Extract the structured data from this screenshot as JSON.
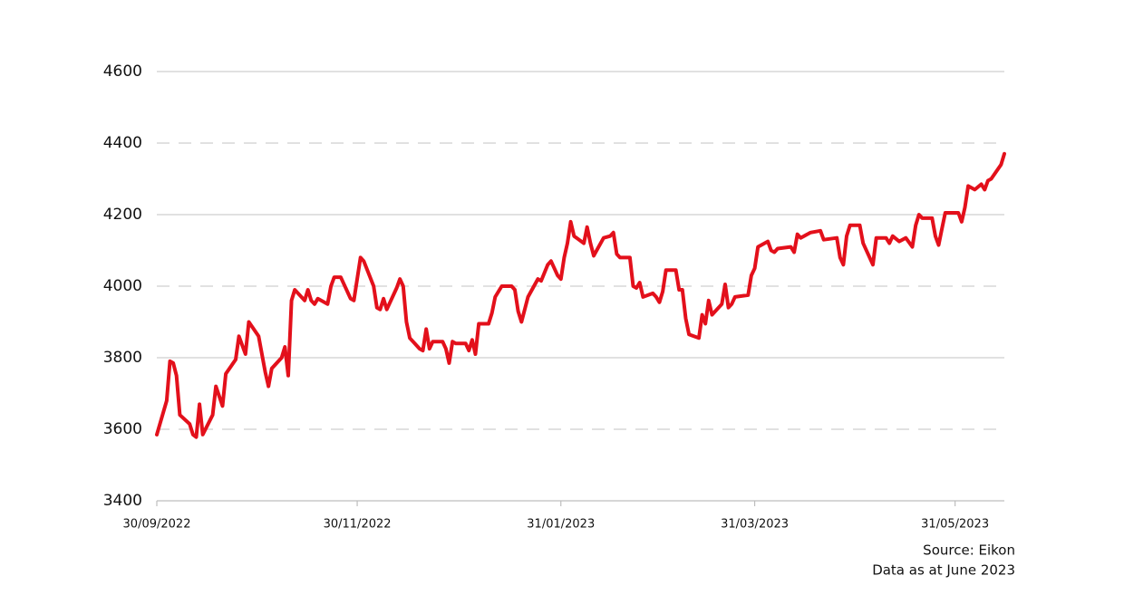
{
  "chart_data": {
    "type": "line",
    "x": [
      "2022-09-30",
      "2022-10-03",
      "2022-10-04",
      "2022-10-05",
      "2022-10-06",
      "2022-10-07",
      "2022-10-10",
      "2022-10-11",
      "2022-10-12",
      "2022-10-13",
      "2022-10-14",
      "2022-10-17",
      "2022-10-18",
      "2022-10-20",
      "2022-10-21",
      "2022-10-24",
      "2022-10-25",
      "2022-10-27",
      "2022-10-28",
      "2022-10-31",
      "2022-11-02",
      "2022-11-03",
      "2022-11-04",
      "2022-11-07",
      "2022-11-08",
      "2022-11-09",
      "2022-11-10",
      "2022-11-11",
      "2022-11-14",
      "2022-11-15",
      "2022-11-16",
      "2022-11-17",
      "2022-11-18",
      "2022-11-21",
      "2022-11-22",
      "2022-11-23",
      "2022-11-25",
      "2022-11-28",
      "2022-11-29",
      "2022-12-01",
      "2022-12-02",
      "2022-12-05",
      "2022-12-06",
      "2022-12-07",
      "2022-12-08",
      "2022-12-09",
      "2022-12-12",
      "2022-12-13",
      "2022-12-14",
      "2022-12-15",
      "2022-12-16",
      "2022-12-19",
      "2022-12-20",
      "2022-12-21",
      "2022-12-22",
      "2022-12-23",
      "2022-12-26",
      "2022-12-27",
      "2022-12-28",
      "2022-12-29",
      "2022-12-30",
      "2023-01-02",
      "2023-01-03",
      "2023-01-04",
      "2023-01-05",
      "2023-01-06",
      "2023-01-09",
      "2023-01-10",
      "2023-01-11",
      "2023-01-13",
      "2023-01-16",
      "2023-01-17",
      "2023-01-18",
      "2023-01-19",
      "2023-01-21",
      "2023-01-24",
      "2023-01-25",
      "2023-01-27",
      "2023-01-28",
      "2023-01-30",
      "2023-01-31",
      "2023-02-01",
      "2023-02-02",
      "2023-02-03",
      "2023-02-04",
      "2023-02-07",
      "2023-02-08",
      "2023-02-09",
      "2023-02-10",
      "2023-02-13",
      "2023-02-15",
      "2023-02-16",
      "2023-02-17",
      "2023-02-18",
      "2023-02-21",
      "2023-02-22",
      "2023-02-23",
      "2023-02-24",
      "2023-02-25",
      "2023-02-28",
      "2023-03-01",
      "2023-03-02",
      "2023-03-03",
      "2023-03-04",
      "2023-03-07",
      "2023-03-08",
      "2023-03-09",
      "2023-03-10",
      "2023-03-11",
      "2023-03-14",
      "2023-03-15",
      "2023-03-16",
      "2023-03-17",
      "2023-03-18",
      "2023-03-21",
      "2023-03-22",
      "2023-03-23",
      "2023-03-24",
      "2023-03-25",
      "2023-03-29",
      "2023-03-30",
      "2023-03-31",
      "2023-04-01",
      "2023-04-04",
      "2023-04-05",
      "2023-04-06",
      "2023-04-07",
      "2023-04-11",
      "2023-04-12",
      "2023-04-13",
      "2023-04-14",
      "2023-04-17",
      "2023-04-20",
      "2023-04-21",
      "2023-04-25",
      "2023-04-26",
      "2023-04-27",
      "2023-04-28",
      "2023-04-29",
      "2023-05-02",
      "2023-05-03",
      "2023-05-06",
      "2023-05-07",
      "2023-05-10",
      "2023-05-11",
      "2023-05-12",
      "2023-05-14",
      "2023-05-16",
      "2023-05-18",
      "2023-05-19",
      "2023-05-20",
      "2023-05-21",
      "2023-05-24",
      "2023-05-25",
      "2023-05-26",
      "2023-05-27",
      "2023-05-28",
      "2023-06-01",
      "2023-06-02",
      "2023-06-03",
      "2023-06-04",
      "2023-06-06",
      "2023-06-08",
      "2023-06-09",
      "2023-06-10",
      "2023-06-11",
      "2023-06-14",
      "2023-06-15"
    ],
    "values": [
      3585,
      3680,
      3790,
      3785,
      3750,
      3640,
      3615,
      3585,
      3578,
      3670,
      3585,
      3640,
      3720,
      3665,
      3755,
      3795,
      3860,
      3810,
      3900,
      3860,
      3760,
      3720,
      3770,
      3800,
      3830,
      3750,
      3960,
      3990,
      3960,
      3990,
      3960,
      3950,
      3965,
      3950,
      4000,
      4025,
      4025,
      3965,
      3960,
      4080,
      4070,
      4000,
      3940,
      3935,
      3965,
      3935,
      3995,
      4020,
      4000,
      3900,
      3855,
      3825,
      3820,
      3880,
      3825,
      3845,
      3845,
      3825,
      3785,
      3845,
      3840,
      3840,
      3820,
      3850,
      3810,
      3895,
      3895,
      3925,
      3970,
      4000,
      4000,
      3990,
      3930,
      3900,
      3970,
      4020,
      4015,
      4060,
      4070,
      4030,
      4020,
      4080,
      4120,
      4180,
      4140,
      4120,
      4165,
      4120,
      4085,
      4135,
      4140,
      4150,
      4090,
      4080,
      4080,
      4000,
      3995,
      4010,
      3970,
      3980,
      3970,
      3955,
      3985,
      4045,
      4045,
      3990,
      3990,
      3910,
      3865,
      3855,
      3920,
      3895,
      3960,
      3920,
      3950,
      4005,
      3940,
      3950,
      3970,
      3975,
      4030,
      4050,
      4110,
      4125,
      4100,
      4095,
      4105,
      4110,
      4095,
      4145,
      4135,
      4150,
      4155,
      4130,
      4135,
      4080,
      4060,
      4140,
      4170,
      4170,
      4120,
      4060,
      4135,
      4135,
      4120,
      4140,
      4125,
      4135,
      4110,
      4170,
      4200,
      4190,
      4190,
      4140,
      4115,
      4160,
      4205,
      4205,
      4180,
      4220,
      4280,
      4270,
      4285,
      4270,
      4295,
      4300,
      4340,
      4370
    ],
    "color": "#e3101b",
    "xlim": [
      "2022-09-30",
      "2023-06-15"
    ],
    "xticks": [
      {
        "value": "2022-09-30",
        "label": "30/09/2022"
      },
      {
        "value": "2022-11-30",
        "label": "30/11/2022"
      },
      {
        "value": "2023-01-31",
        "label": "31/01/2023"
      },
      {
        "value": "2023-03-31",
        "label": "31/03/2023"
      },
      {
        "value": "2023-05-31",
        "label": "31/05/2023"
      }
    ],
    "ylim": [
      3400,
      4600
    ],
    "yticks": [
      3400,
      3600,
      3800,
      4000,
      4200,
      4400,
      4600
    ],
    "grid": true,
    "source": "Source: Eikon",
    "note": "Data as at June 2023"
  }
}
